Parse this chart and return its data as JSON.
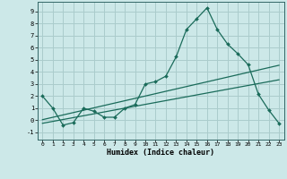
{
  "title": "",
  "xlabel": "Humidex (Indice chaleur)",
  "bg_color": "#cce8e8",
  "grid_color": "#aacccc",
  "line_color": "#1a6b5a",
  "xlim": [
    -0.5,
    23.5
  ],
  "ylim": [
    -1.6,
    9.8
  ],
  "xticks": [
    0,
    1,
    2,
    3,
    4,
    5,
    6,
    7,
    8,
    9,
    10,
    11,
    12,
    13,
    14,
    15,
    16,
    17,
    18,
    19,
    20,
    21,
    22,
    23
  ],
  "yticks": [
    -1,
    0,
    1,
    2,
    3,
    4,
    5,
    6,
    7,
    8,
    9
  ],
  "line1_x": [
    0,
    1,
    2,
    3,
    4,
    5,
    6,
    7,
    8,
    9,
    10,
    11,
    12,
    13,
    14,
    15,
    16,
    17,
    18,
    19,
    20,
    21,
    22,
    23
  ],
  "line1_y": [
    2.0,
    1.0,
    -0.4,
    -0.2,
    1.0,
    0.75,
    0.25,
    0.25,
    1.0,
    1.3,
    3.0,
    3.2,
    3.65,
    5.25,
    7.5,
    8.4,
    9.3,
    7.5,
    6.3,
    5.5,
    4.6,
    2.15,
    0.85,
    -0.25
  ],
  "line2_x": [
    0,
    23
  ],
  "line2_y": [
    0.05,
    4.55
  ],
  "line3_x": [
    0,
    23
  ],
  "line3_y": [
    -0.25,
    3.35
  ]
}
